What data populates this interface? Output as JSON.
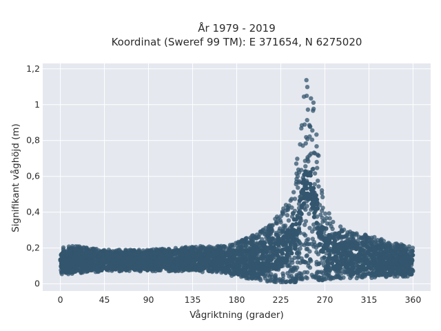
{
  "chart_data": {
    "type": "scatter",
    "title_line1": "År 1979 - 2019",
    "title_line2": "Koordinat (Sweref 99 TM): E 371654, N 6275020",
    "xlabel": "Vågriktning (grader)",
    "ylabel": "Signifikant våghöjd (m)",
    "xlim": [
      -18,
      378
    ],
    "ylim": [
      -0.04,
      1.23
    ],
    "x_ticks": [
      0,
      45,
      90,
      135,
      180,
      225,
      270,
      315,
      360
    ],
    "x_tick_labels": [
      "0",
      "45",
      "90",
      "135",
      "180",
      "225",
      "270",
      "315",
      "360"
    ],
    "y_ticks": [
      0,
      0.2,
      0.4,
      0.6,
      0.8,
      1,
      1.2
    ],
    "y_tick_labels": [
      "0",
      "0,2",
      "0,4",
      "0,6",
      "0,8",
      "1",
      "1,2"
    ],
    "grid": true,
    "legend": "none",
    "colors": {
      "marker": "#33566e",
      "plot_background": "#e5e8ef",
      "grid": "#ffffff"
    },
    "envelope": {
      "x": [
        0,
        20,
        45,
        90,
        135,
        160,
        180,
        200,
        215,
        225,
        232,
        240,
        245,
        250,
        255,
        260,
        265,
        270,
        278,
        290,
        315,
        340,
        360
      ],
      "y_min": [
        0.05,
        0.06,
        0.07,
        0.07,
        0.07,
        0.06,
        0.04,
        0.02,
        0.01,
        0.01,
        0.01,
        0.01,
        0.02,
        0.03,
        0.03,
        0.03,
        0.02,
        0.02,
        0.02,
        0.02,
        0.03,
        0.04,
        0.04
      ],
      "y_max": [
        0.21,
        0.21,
        0.19,
        0.19,
        0.21,
        0.21,
        0.23,
        0.28,
        0.34,
        0.4,
        0.46,
        0.62,
        0.92,
        1.18,
        1.18,
        0.95,
        0.62,
        0.44,
        0.36,
        0.3,
        0.27,
        0.23,
        0.21
      ]
    }
  }
}
